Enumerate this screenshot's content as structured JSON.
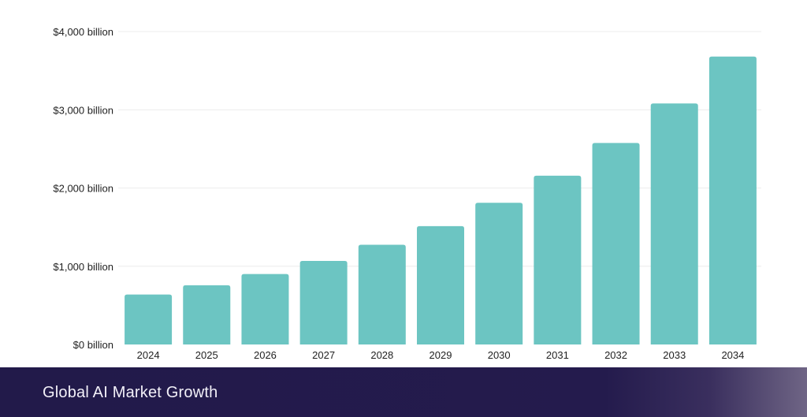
{
  "chart_data": {
    "type": "bar",
    "categories": [
      "2024",
      "2025",
      "2026",
      "2027",
      "2028",
      "2029",
      "2030",
      "2031",
      "2032",
      "2033",
      "2034"
    ],
    "values": [
      638,
      757,
      900,
      1068,
      1274,
      1512,
      1811,
      2158,
      2575,
      3080,
      3680
    ],
    "ylim": [
      0,
      4000
    ],
    "yticks": [
      0,
      1000,
      2000,
      3000,
      4000
    ],
    "ytick_labels": [
      "$0 billion",
      "$1,000 billion",
      "$2,000 billion",
      "$3,000 billion",
      "$4,000 billion"
    ],
    "grid": true,
    "bar_color": "#6cc5c2",
    "grid_color": "#ececec"
  },
  "footer": {
    "title": "Global AI Market Growth"
  }
}
